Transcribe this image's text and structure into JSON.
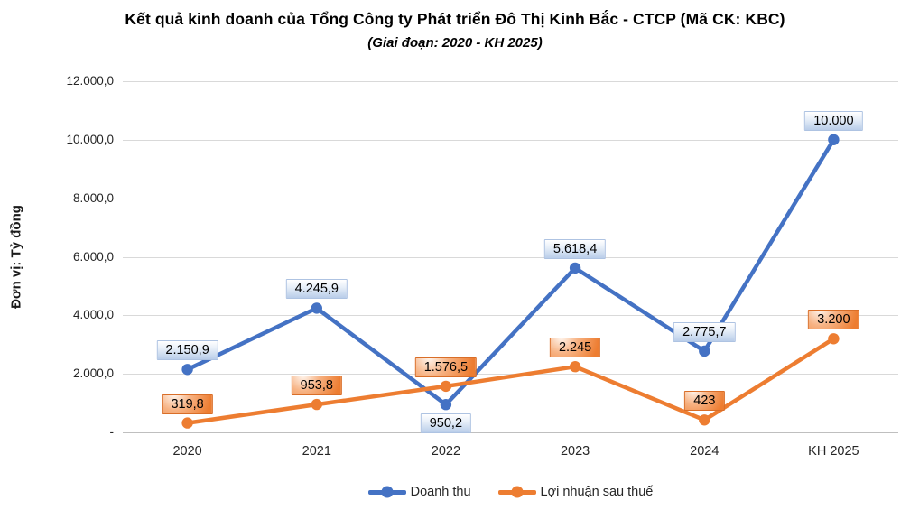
{
  "chart_data": {
    "type": "line",
    "title": "Kết quả kinh doanh của Tổng Công ty Phát triển Đô Thị Kinh Bắc - CTCP (Mã CK: KBC)",
    "subtitle": "(Giai đoạn: 2020 - KH 2025)",
    "y_axis_title": "Đơn vị: Tỷ đồng",
    "categories": [
      "2020",
      "2021",
      "2022",
      "2023",
      "2024",
      "KH 2025"
    ],
    "series": [
      {
        "name": "Doanh thu",
        "color": "#4472C4",
        "values": [
          2150.9,
          4245.9,
          950.2,
          5618.4,
          2775.7,
          10000
        ],
        "labels": [
          "2.150,9",
          "4.245,9",
          "950,2",
          "5.618,4",
          "2.775,7",
          "10.000"
        ],
        "label_positions": [
          "above",
          "above",
          "below",
          "above",
          "above",
          "above"
        ]
      },
      {
        "name": "Lợi nhuận sau thuế",
        "color": "#ED7D31",
        "values": [
          319.8,
          953.8,
          1576.5,
          2245,
          423,
          3200
        ],
        "labels": [
          "319,8",
          "953,8",
          "1.576,5",
          "2.245",
          "423",
          "3.200"
        ],
        "label_positions": [
          "above",
          "above",
          "above",
          "above",
          "above",
          "above"
        ]
      }
    ],
    "y_tick_labels": [
      "12.000,0",
      "10.000,0",
      "8.000,0",
      "6.000,0",
      "4.000,0",
      "2.000,0",
      "-"
    ],
    "ylim": [
      0,
      12000
    ],
    "y_step": 2000,
    "grid": true,
    "legend_position": "bottom"
  }
}
